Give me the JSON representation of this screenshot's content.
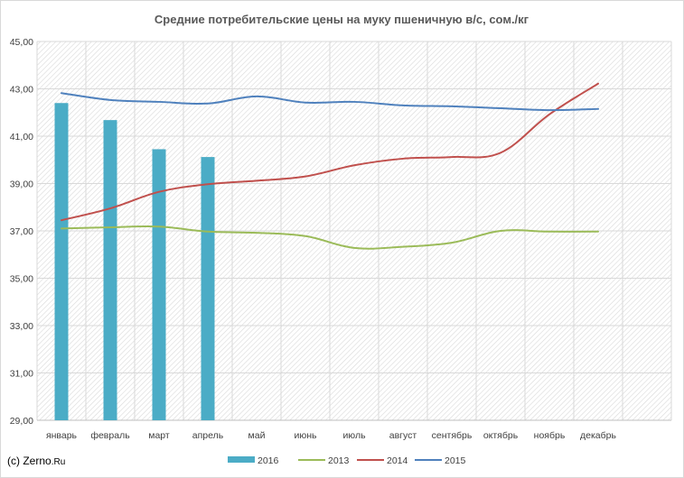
{
  "chart_data": {
    "type": "bar+line",
    "title": "Средние потребительские цены на муку пшеничную в/с, сом./кг",
    "categories": [
      "январь",
      "февраль",
      "март",
      "апрель",
      "май",
      "июнь",
      "июль",
      "август",
      "сентябрь",
      "октябрь",
      "ноябрь",
      "декабрь"
    ],
    "ylim": [
      29,
      45
    ],
    "yticks": [
      29,
      31,
      33,
      35,
      37,
      39,
      41,
      43,
      45
    ],
    "ytick_labels": [
      "29,00",
      "31,00",
      "33,00",
      "35,00",
      "37,00",
      "39,00",
      "41,00",
      "43,00",
      "45,00"
    ],
    "grid": true,
    "legend_position": "bottom",
    "series": [
      {
        "name": "2016",
        "type": "bar",
        "color": "#4BACC6",
        "values": [
          42.4,
          41.68,
          40.45,
          40.12,
          null,
          null,
          null,
          null,
          null,
          null,
          null,
          null
        ]
      },
      {
        "name": "2013",
        "type": "line",
        "color": "#9BBB59",
        "values": [
          37.1,
          37.15,
          37.18,
          36.97,
          36.92,
          36.78,
          36.28,
          36.33,
          36.5,
          37.0,
          36.97,
          36.97
        ]
      },
      {
        "name": "2014",
        "type": "line",
        "color": "#C0504D",
        "values": [
          37.45,
          37.95,
          38.65,
          38.97,
          39.12,
          39.3,
          39.77,
          40.05,
          40.12,
          40.3,
          41.92,
          43.22
        ]
      },
      {
        "name": "2015",
        "type": "line",
        "color": "#4F81BD",
        "values": [
          42.82,
          42.53,
          42.45,
          42.38,
          42.68,
          42.42,
          42.45,
          42.3,
          42.26,
          42.18,
          42.1,
          42.15
        ]
      }
    ]
  },
  "copyright": {
    "prefix": "(c) ",
    "brand_main": "Zerno",
    "brand_suffix": ".Ru"
  }
}
